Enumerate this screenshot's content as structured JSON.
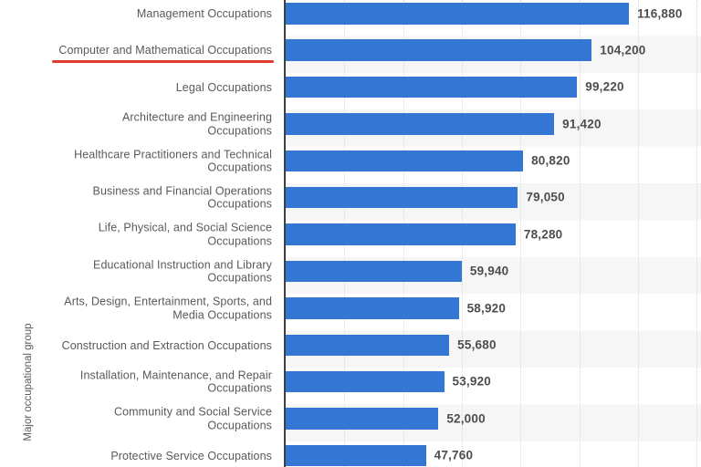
{
  "chart_data": {
    "type": "bar",
    "orientation": "horizontal",
    "title": "",
    "xlabel": "",
    "ylabel": "Major occupational group",
    "xlim": [
      0,
      141400
    ],
    "gridline_interval": 20000,
    "grid": true,
    "legend": false,
    "categories": [
      "Management Occupations",
      "Computer and Mathematical Occupations",
      "Legal Occupations",
      "Architecture and Engineering Occupations",
      "Healthcare Practitioners and Technical Occupations",
      "Business and Financial Operations Occupations",
      "Life, Physical, and Social Science Occupations",
      "Educational Instruction and Library Occupations",
      "Arts, Design, Entertainment, Sports, and Media Occupations",
      "Construction and Extraction Occupations",
      "Installation, Maintenance, and Repair Occupations",
      "Community and Social Service Occupations",
      "Protective Service Occupations"
    ],
    "label_lines": [
      [
        "Management Occupations"
      ],
      [
        "Computer and Mathematical Occupations"
      ],
      [
        "Legal Occupations"
      ],
      [
        "Architecture and Engineering",
        "Occupations"
      ],
      [
        "Healthcare Practitioners and Technical",
        "Occupations"
      ],
      [
        "Business and Financial Operations",
        "Occupations"
      ],
      [
        "Life, Physical, and Social Science",
        "Occupations"
      ],
      [
        "Educational Instruction and Library",
        "Occupations"
      ],
      [
        "Arts, Design, Entertainment, Sports, and",
        "Media Occupations"
      ],
      [
        "Construction and Extraction Occupations"
      ],
      [
        "Installation, Maintenance, and Repair",
        "Occupations"
      ],
      [
        "Community and Social Service",
        "Occupations"
      ],
      [
        "Protective Service Occupations"
      ]
    ],
    "values": [
      116880,
      104200,
      99220,
      91420,
      80820,
      79050,
      78280,
      59940,
      58920,
      55680,
      53920,
      52000,
      47760
    ],
    "value_labels": [
      "116,880",
      "104,200",
      "99,220",
      "91,420",
      "80,820",
      "79,050",
      "78,280",
      "59,940",
      "58,920",
      "55,680",
      "53,920",
      "52,000",
      "47,760"
    ],
    "highlight": {
      "category_index": 1,
      "category": "Computer and Mathematical Occupations",
      "style": "red-underline"
    }
  },
  "colors": {
    "bar": "#3376d3",
    "axis_line": "#404040",
    "gridline": "#d9d9d9",
    "zebra_stripe": "#f6f6f6",
    "category_text": "#595959",
    "value_text": "#4d4d4d",
    "highlight_underline": "#e03a2f",
    "background": "#ffffff"
  }
}
